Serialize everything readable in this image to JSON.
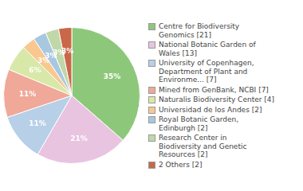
{
  "chart_data": {
    "type": "pie",
    "labels": [
      "Centre for Biodiversity\nGenomics [21]",
      "National Botanic Garden of\nWales [13]",
      "University of Copenhagen,\nDepartment of Plant and\nEnvironme... [7]",
      "Mined from GenBank, NCBI [7]",
      "Naturalis Biodiversity Center [4]",
      "Universidad de los Andes [2]",
      "Royal Botanic Garden,\nEdinburgh [2]",
      "Research Center in\nBiodiversity and Genetic\nResources [2]",
      "2 Others [2]"
    ],
    "values": [
      35,
      21,
      11,
      11,
      6,
      3,
      3,
      3,
      3
    ],
    "value_labels": [
      "35%",
      "21%",
      "11%",
      "11%",
      "6%",
      "3%",
      "3%",
      "3%",
      "3%"
    ],
    "colors": [
      "#8dc87a",
      "#e8c4e0",
      "#b8cfe8",
      "#f0a898",
      "#d8e8a8",
      "#f8c890",
      "#a8c8e0",
      "#c0d8a8",
      "#c86848"
    ],
    "data_labels": true,
    "legend": "right"
  }
}
